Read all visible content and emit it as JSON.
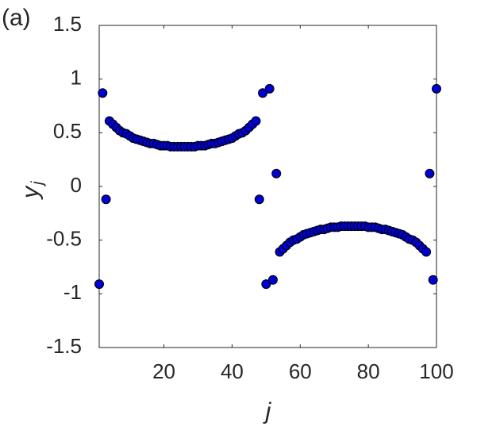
{
  "chart_data": {
    "type": "scatter",
    "panel_label": "(a)",
    "xlabel": "j",
    "ylabel": "y",
    "ylabel_sub": "j",
    "xlim": [
      1,
      100
    ],
    "ylim": [
      -1.5,
      1.5
    ],
    "xticks": [
      20,
      40,
      60,
      80,
      100
    ],
    "yticks": [
      -1.5,
      -1,
      -0.5,
      0,
      0.5,
      1,
      1.5
    ],
    "color": "#0000d0",
    "x": [
      1,
      2,
      3,
      4,
      5,
      6,
      7,
      8,
      9,
      10,
      11,
      12,
      13,
      14,
      15,
      16,
      17,
      18,
      19,
      20,
      21,
      22,
      23,
      24,
      25,
      26,
      27,
      28,
      29,
      30,
      31,
      32,
      33,
      34,
      35,
      36,
      37,
      38,
      39,
      40,
      41,
      42,
      43,
      44,
      45,
      46,
      47,
      48,
      49,
      50,
      51,
      52,
      53,
      54,
      55,
      56,
      57,
      58,
      59,
      60,
      61,
      62,
      63,
      64,
      65,
      66,
      67,
      68,
      69,
      70,
      71,
      72,
      73,
      74,
      75,
      76,
      77,
      78,
      79,
      80,
      81,
      82,
      83,
      84,
      85,
      86,
      87,
      88,
      89,
      90,
      91,
      92,
      93,
      94,
      95,
      96,
      97,
      98,
      99,
      100
    ],
    "values": [
      -0.91,
      0.87,
      -0.12,
      0.61,
      0.58,
      0.55,
      0.52,
      0.5,
      0.49,
      0.47,
      0.45,
      0.44,
      0.43,
      0.42,
      0.41,
      0.4,
      0.4,
      0.39,
      0.38,
      0.38,
      0.38,
      0.37,
      0.37,
      0.37,
      0.37,
      0.37,
      0.37,
      0.37,
      0.37,
      0.38,
      0.38,
      0.38,
      0.39,
      0.4,
      0.4,
      0.41,
      0.42,
      0.43,
      0.44,
      0.45,
      0.47,
      0.49,
      0.5,
      0.52,
      0.55,
      0.58,
      0.61,
      -0.12,
      0.87,
      -0.91,
      0.91,
      -0.87,
      0.12,
      -0.61,
      -0.58,
      -0.55,
      -0.52,
      -0.5,
      -0.49,
      -0.47,
      -0.45,
      -0.44,
      -0.43,
      -0.42,
      -0.41,
      -0.4,
      -0.4,
      -0.39,
      -0.38,
      -0.38,
      -0.38,
      -0.37,
      -0.37,
      -0.37,
      -0.37,
      -0.37,
      -0.37,
      -0.37,
      -0.37,
      -0.38,
      -0.38,
      -0.38,
      -0.39,
      -0.4,
      -0.4,
      -0.41,
      -0.42,
      -0.43,
      -0.44,
      -0.45,
      -0.47,
      -0.49,
      -0.5,
      -0.52,
      -0.55,
      -0.58,
      -0.61,
      0.12,
      -0.87,
      0.91
    ]
  }
}
